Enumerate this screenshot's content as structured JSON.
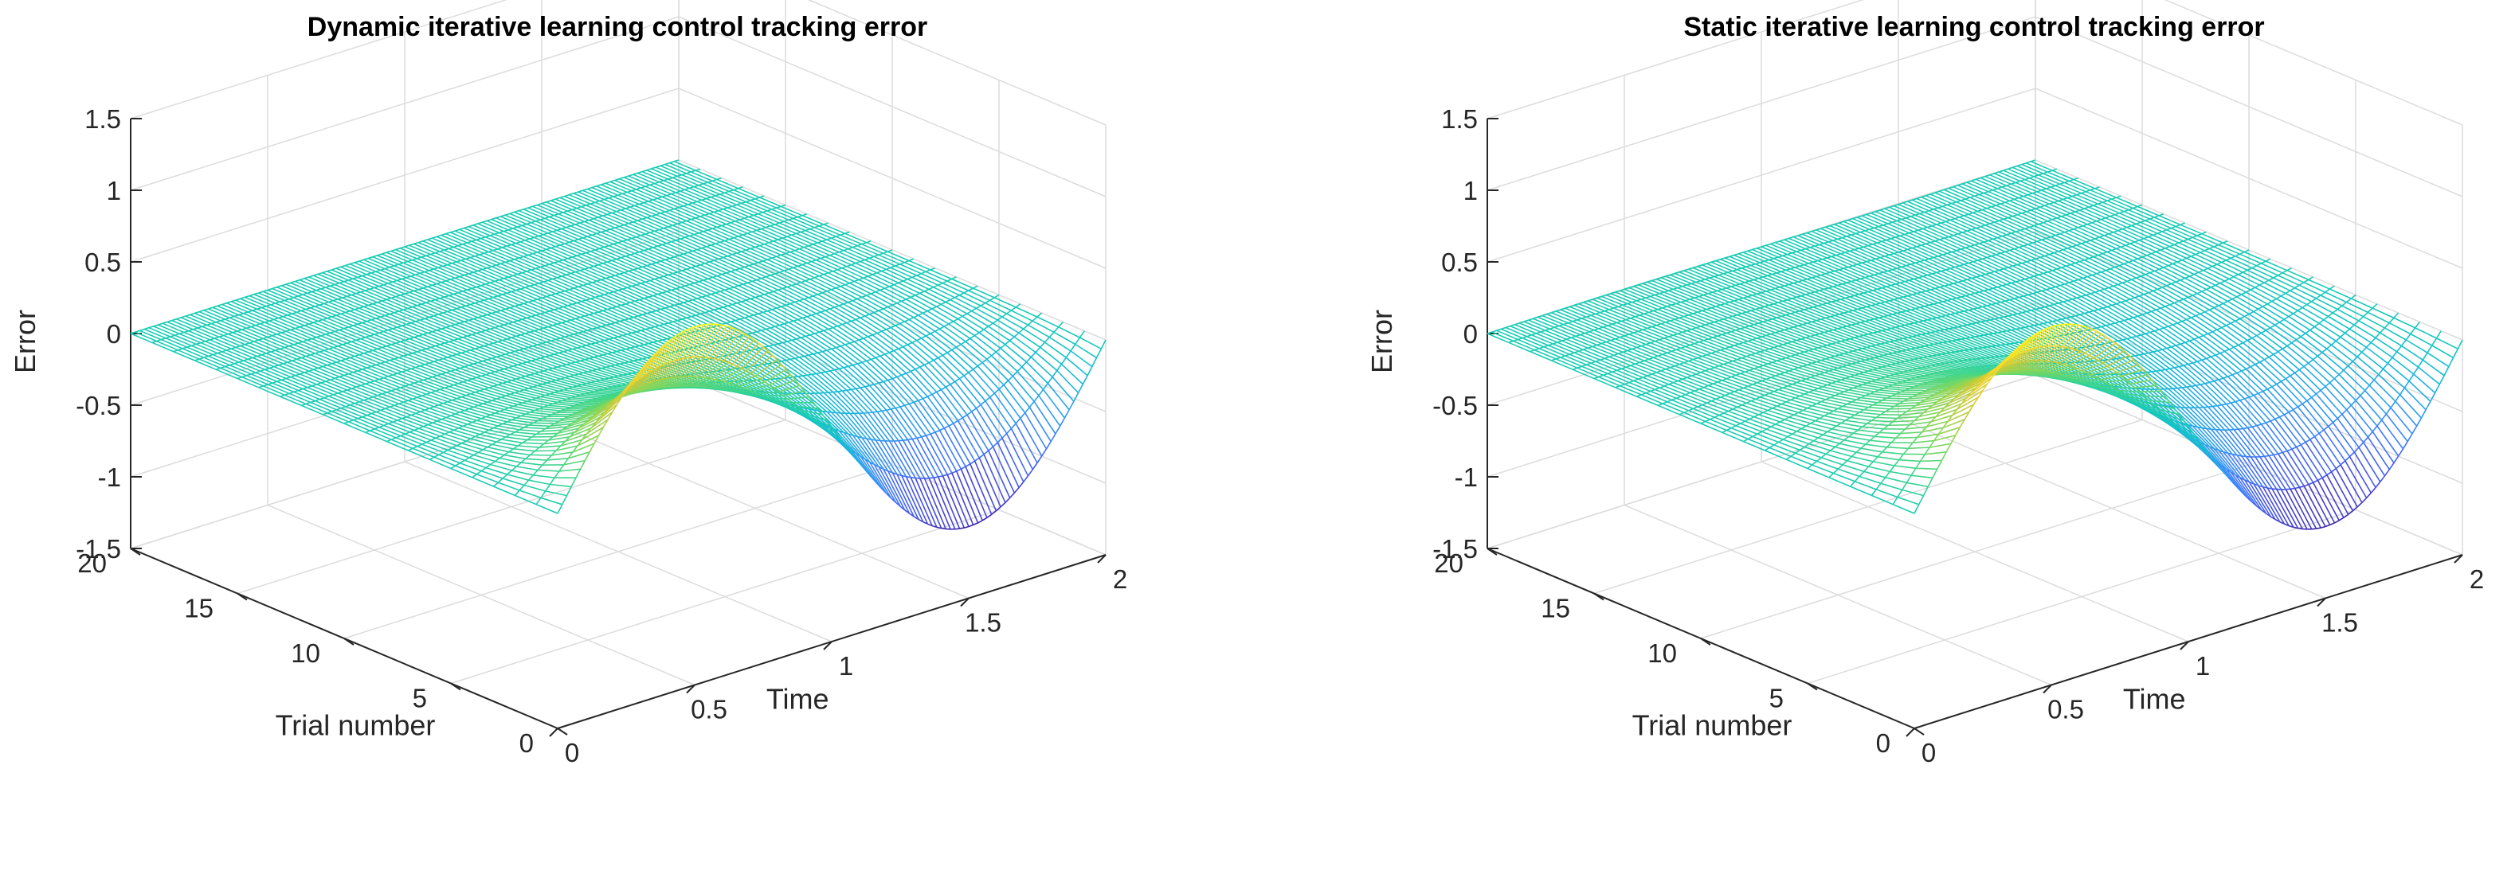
{
  "chart_data": [
    {
      "type": "surface-mesh",
      "title": "Dynamic iterative learning control tracking error",
      "xlabel": "Time",
      "ylabel": "Trial number",
      "zlabel": "Error",
      "xlim": [
        0,
        2
      ],
      "ylim": [
        0,
        20
      ],
      "zlim": [
        -1.5,
        1.5
      ],
      "xticks": [
        "0",
        "0.5",
        "1",
        "1.5",
        "2"
      ],
      "yticks": [
        "0",
        "5",
        "10",
        "15",
        "20"
      ],
      "zticks": [
        "-1.5",
        "-1",
        "-0.5",
        "0",
        "0.5",
        "1",
        "1.5"
      ],
      "initial_error": "e0(t) = sin(pi*t), t in [0,2]",
      "trial0_extremes": {
        "max": 1.0,
        "max_at_time": 0.5,
        "min": -1.0,
        "min_at_time": 1.5
      },
      "decay_per_trial": 0.7,
      "final_trial_error": 0
    },
    {
      "type": "surface-mesh",
      "title": "Static iterative learning control tracking error",
      "xlabel": "Time",
      "ylabel": "Trial number",
      "zlabel": "Error",
      "xlim": [
        0,
        2
      ],
      "ylim": [
        0,
        20
      ],
      "zlim": [
        -1.5,
        1.5
      ],
      "xticks": [
        "0",
        "0.5",
        "1",
        "1.5",
        "2"
      ],
      "yticks": [
        "0",
        "5",
        "10",
        "15",
        "20"
      ],
      "zticks": [
        "-1.5",
        "-1",
        "-0.5",
        "0",
        "0.5",
        "1",
        "1.5"
      ],
      "initial_error": "e0(t) = sin(pi*t), t in [0,2]",
      "trial0_extremes": {
        "max": 1.0,
        "max_at_time": 0.5,
        "min": -1.0,
        "min_at_time": 1.5
      },
      "decay_per_trial": 0.78,
      "final_trial_error": 0
    }
  ]
}
